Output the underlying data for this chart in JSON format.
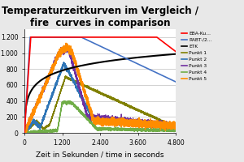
{
  "title": "Temperaturzeitkurven im Vergleich /\nfire  curves in comparison",
  "xlabel": "Zeit in Sekunden / time in seconds",
  "xlim": [
    0,
    4800
  ],
  "ylim": [
    0,
    1300
  ],
  "yticks": [
    0,
    200,
    400,
    600,
    800,
    1000,
    1200
  ],
  "ytick_labels": [
    "0",
    "200",
    "400",
    "600",
    "800",
    "1.000",
    "1.200"
  ],
  "xticks": [
    0,
    1200,
    2400,
    3600,
    4800
  ],
  "xtick_labels": [
    "0",
    "1.200",
    "2.400",
    "3.600",
    "4.800"
  ],
  "fig_bg": "#e8e8e8",
  "plot_bg": "#ffffff",
  "legend_labels": [
    "EBA-Ku…",
    "RABT-/2…",
    "ETK",
    "Punkt 1",
    "Punkt 2",
    "Punkt 3",
    "Punkt 4",
    "Punkt 5"
  ],
  "legend_colors": [
    "#ff0000",
    "#4472c4",
    "#000000",
    "#808000",
    "#2e75b6",
    "#7030a0",
    "#70ad47",
    "#ff8c00"
  ],
  "title_fontsize": 8.5,
  "axis_fontsize": 6.5,
  "tick_fontsize": 5.5
}
